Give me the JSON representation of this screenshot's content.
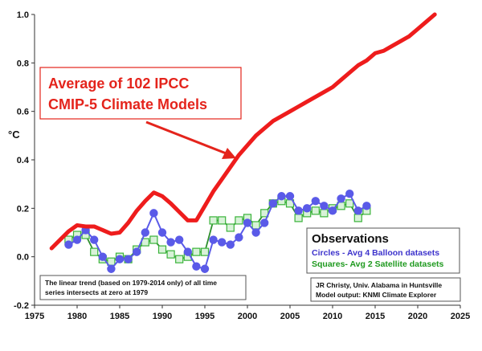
{
  "chart_data": {
    "type": "line",
    "ylabel": "°C",
    "xlim": [
      1975,
      2025
    ],
    "ylim": [
      -0.2,
      1.0
    ],
    "x_ticks": [
      "1975",
      "1980",
      "1985",
      "1990",
      "1995",
      "2000",
      "2005",
      "2010",
      "2015",
      "2020",
      "2025"
    ],
    "y_ticks": [
      "-0.2",
      "0.0",
      "0.2",
      "0.4",
      "0.6",
      "0.8",
      "1.0"
    ],
    "series": [
      {
        "name": "Average of 102 IPCC CMIP-5 Climate Models",
        "color": "#ee1c1c",
        "marker": "none",
        "x": [
          1977,
          1978,
          1979,
          1980,
          1981,
          1982,
          1983,
          1984,
          1985,
          1986,
          1987,
          1988,
          1989,
          1990,
          1991,
          1992,
          1993,
          1994,
          1995,
          1996,
          1997,
          1998,
          1999,
          2000,
          2001,
          2002,
          2003,
          2004,
          2005,
          2006,
          2007,
          2008,
          2009,
          2010,
          2011,
          2012,
          2013,
          2014,
          2015,
          2016,
          2017,
          2018,
          2019,
          2020,
          2021,
          2022
        ],
        "values": [
          0.035,
          0.07,
          0.105,
          0.13,
          0.125,
          0.125,
          0.11,
          0.095,
          0.1,
          0.14,
          0.19,
          0.23,
          0.265,
          0.25,
          0.22,
          0.185,
          0.15,
          0.15,
          0.21,
          0.27,
          0.32,
          0.37,
          0.42,
          0.46,
          0.5,
          0.53,
          0.56,
          0.58,
          0.6,
          0.62,
          0.64,
          0.66,
          0.68,
          0.7,
          0.73,
          0.76,
          0.79,
          0.81,
          0.84,
          0.85,
          0.87,
          0.89,
          0.91,
          0.94,
          0.97,
          1.0
        ]
      },
      {
        "name": "Circles - Avg 4 Balloon datasets",
        "color": "#5a5ae8",
        "marker": "circle",
        "x": [
          1979,
          1980,
          1981,
          1982,
          1983,
          1984,
          1985,
          1986,
          1987,
          1988,
          1989,
          1990,
          1991,
          1992,
          1993,
          1994,
          1995,
          1996,
          1997,
          1998,
          1999,
          2000,
          2001,
          2002,
          2003,
          2004,
          2005,
          2006,
          2007,
          2008,
          2009,
          2010,
          2011,
          2012,
          2013,
          2014
        ],
        "values": [
          0.05,
          0.07,
          0.11,
          0.07,
          0.0,
          -0.05,
          -0.01,
          -0.01,
          0.02,
          0.1,
          0.18,
          0.1,
          0.06,
          0.07,
          0.02,
          -0.04,
          -0.05,
          0.07,
          0.06,
          0.05,
          0.08,
          0.14,
          0.1,
          0.14,
          0.22,
          0.25,
          0.25,
          0.19,
          0.2,
          0.23,
          0.21,
          0.19,
          0.24,
          0.26,
          0.19,
          0.21
        ]
      },
      {
        "name": "Squares- Avg 2 Satellite datasets",
        "color": "#3ab33a",
        "marker": "square",
        "x": [
          1979,
          1980,
          1981,
          1982,
          1983,
          1984,
          1985,
          1986,
          1987,
          1988,
          1989,
          1990,
          1991,
          1992,
          1993,
          1994,
          1995,
          1996,
          1997,
          1998,
          1999,
          2000,
          2001,
          2002,
          2003,
          2004,
          2005,
          2006,
          2007,
          2008,
          2009,
          2010,
          2011,
          2012,
          2013,
          2014
        ],
        "values": [
          0.07,
          0.09,
          0.09,
          0.02,
          -0.01,
          -0.02,
          0.0,
          -0.01,
          0.03,
          0.06,
          0.07,
          0.03,
          0.01,
          -0.01,
          0.0,
          0.02,
          0.02,
          0.15,
          0.15,
          0.12,
          0.15,
          0.16,
          0.13,
          0.18,
          0.22,
          0.23,
          0.22,
          0.16,
          0.18,
          0.19,
          0.18,
          0.2,
          0.21,
          0.22,
          0.16,
          0.19
        ]
      }
    ]
  },
  "callout": {
    "line1": "Average of 102 IPCC",
    "line2": "CMIP-5 Climate Models",
    "color": "#e4241c"
  },
  "legend": {
    "title": "Observations",
    "circles": "Circles - Avg 4 Balloon datasets",
    "squares": "Squares- Avg 2 Satellite datasets"
  },
  "note": {
    "line1": "The linear trend (based on 1979-2014 only) of all time",
    "line2": "series intersects at zero at 1979"
  },
  "credit": {
    "line1": "JR Christy, Univ. Alabama in Huntsville",
    "line2": "Model output: KNMI Climate Explorer"
  }
}
